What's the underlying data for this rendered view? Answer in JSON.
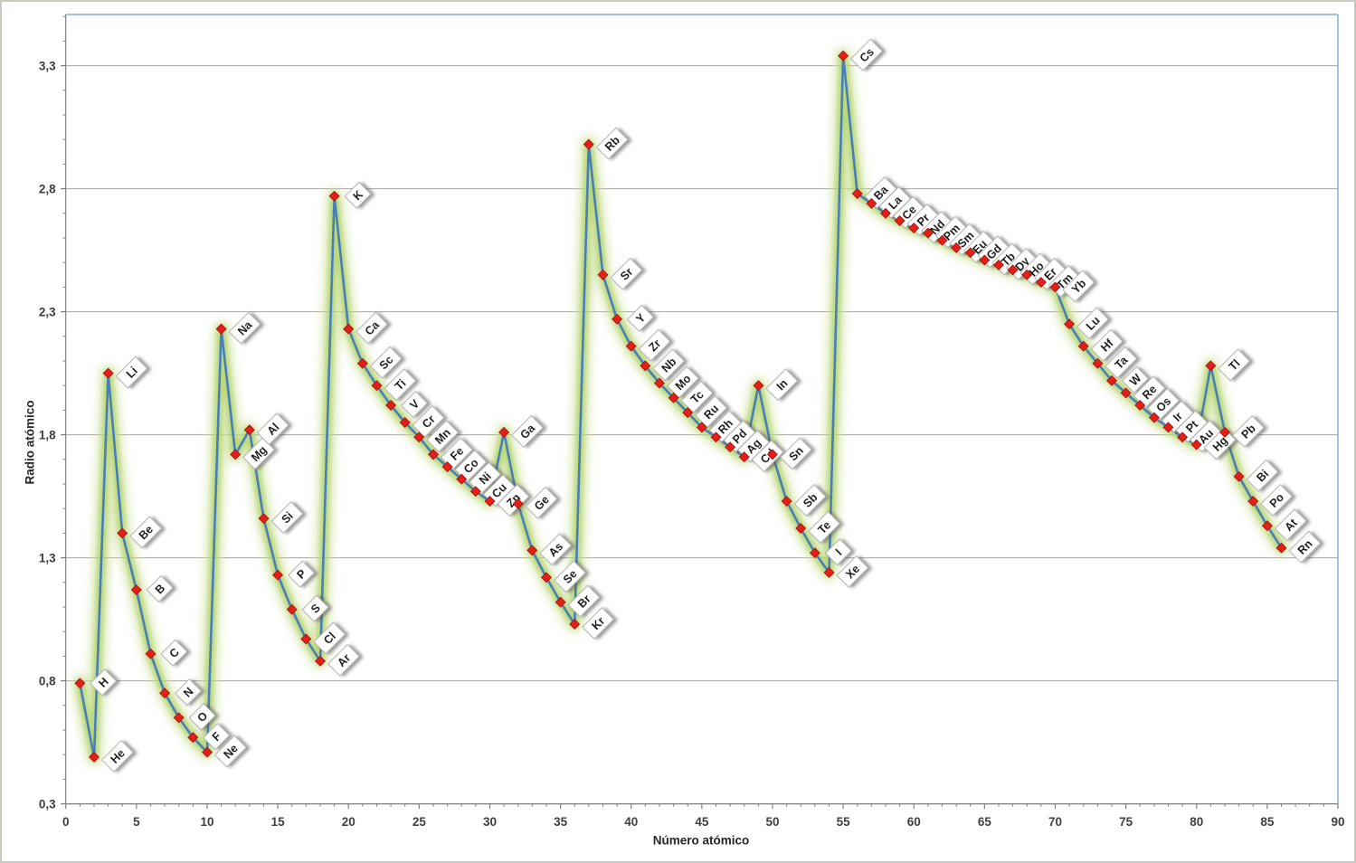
{
  "window": {
    "background": "#ffffff",
    "border_color": "#ccc9c3"
  },
  "chart_data": {
    "type": "line",
    "title": "",
    "xlabel": "Número atómico",
    "ylabel": "Radio atómico",
    "xlim": [
      0,
      90
    ],
    "ylim": [
      0.3,
      3.3
    ],
    "x_tick_step": 5,
    "x_minor_tick_step": 1,
    "y_minor_tick_step": 0.1,
    "grid": "horizontal-only",
    "legend": "none",
    "x_ticks": [
      {
        "value": 0,
        "label": "0"
      },
      {
        "value": 5,
        "label": "5"
      },
      {
        "value": 10,
        "label": "10"
      },
      {
        "value": 15,
        "label": "15"
      },
      {
        "value": 20,
        "label": "20"
      },
      {
        "value": 25,
        "label": "25"
      },
      {
        "value": 30,
        "label": "30"
      },
      {
        "value": 35,
        "label": "35"
      },
      {
        "value": 40,
        "label": "40"
      },
      {
        "value": 45,
        "label": "45"
      },
      {
        "value": 50,
        "label": "50"
      },
      {
        "value": 55,
        "label": "55"
      },
      {
        "value": 60,
        "label": "60"
      },
      {
        "value": 65,
        "label": "65"
      },
      {
        "value": 70,
        "label": "70"
      },
      {
        "value": 75,
        "label": "75"
      },
      {
        "value": 80,
        "label": "80"
      },
      {
        "value": 85,
        "label": "85"
      },
      {
        "value": 90,
        "label": "90"
      }
    ],
    "y_ticks": [
      {
        "value": 3.3,
        "label": "3,3"
      },
      {
        "value": 2.8,
        "label": "2,8"
      },
      {
        "value": 2.3,
        "label": "2,3"
      },
      {
        "value": 1.8,
        "label": "1,8"
      },
      {
        "value": 1.3,
        "label": "1,3"
      },
      {
        "value": 0.8,
        "label": "0,8"
      },
      {
        "value": 0.3,
        "label": "0,3"
      }
    ],
    "series": [
      {
        "name": "Radio atómico",
        "x": [
          1,
          2,
          3,
          4,
          5,
          6,
          7,
          8,
          9,
          10,
          11,
          12,
          13,
          14,
          15,
          16,
          17,
          18,
          19,
          20,
          21,
          22,
          23,
          24,
          25,
          26,
          27,
          28,
          29,
          30,
          31,
          32,
          33,
          34,
          35,
          36,
          37,
          38,
          39,
          40,
          41,
          42,
          43,
          44,
          45,
          46,
          47,
          48,
          49,
          50,
          51,
          52,
          53,
          54,
          55,
          56,
          57,
          58,
          59,
          60,
          61,
          62,
          63,
          64,
          65,
          66,
          67,
          68,
          69,
          70,
          71,
          72,
          73,
          74,
          75,
          76,
          77,
          78,
          79,
          80,
          81,
          82,
          83,
          84,
          85,
          86
        ],
        "point_labels": [
          "H",
          "He",
          "Li",
          "Be",
          "B",
          "C",
          "N",
          "O",
          "F",
          "Ne",
          "Na",
          "Mg",
          "Al",
          "Si",
          "P",
          "S",
          "Cl",
          "Ar",
          "K",
          "Ca",
          "Sc",
          "Ti",
          "V",
          "Cr",
          "Mn",
          "Fe",
          "Co",
          "Ni",
          "Cu",
          "Zn",
          "Ga",
          "Ge",
          "As",
          "Se",
          "Br",
          "Kr",
          "Rb",
          "Sr",
          "Y",
          "Zr",
          "Nb",
          "Mo",
          "Tc",
          "Ru",
          "Rh",
          "Pd",
          "Ag",
          "Cd",
          "In",
          "Sn",
          "Sb",
          "Te",
          "I",
          "Xe",
          "Cs",
          "Ba",
          "La",
          "Ce",
          "Pr",
          "Nd",
          "Pm",
          "Sm",
          "Eu",
          "Gd",
          "Tb",
          "Dy",
          "Ho",
          "Er",
          "Tm",
          "Yb",
          "Lu",
          "Hf",
          "Ta",
          "W",
          "Re",
          "Os",
          "Ir",
          "Pt",
          "Au",
          "Hg",
          "Tl",
          "Pb",
          "Bi",
          "Po",
          "At",
          "Rn"
        ],
        "y": [
          0.79,
          0.49,
          2.05,
          1.4,
          1.17,
          0.91,
          0.75,
          0.65,
          0.57,
          0.51,
          2.23,
          1.72,
          1.82,
          1.46,
          1.23,
          1.09,
          0.97,
          0.88,
          2.77,
          2.23,
          2.09,
          2.0,
          1.92,
          1.85,
          1.79,
          1.72,
          1.67,
          1.62,
          1.57,
          1.53,
          1.81,
          1.52,
          1.33,
          1.22,
          1.12,
          1.03,
          2.98,
          2.45,
          2.27,
          2.16,
          2.08,
          2.01,
          1.95,
          1.89,
          1.83,
          1.79,
          1.75,
          1.71,
          2.0,
          1.72,
          1.53,
          1.42,
          1.32,
          1.24,
          3.34,
          2.78,
          2.74,
          2.7,
          2.67,
          2.64,
          2.62,
          2.59,
          2.56,
          2.54,
          2.51,
          2.49,
          2.47,
          2.45,
          2.42,
          2.4,
          2.25,
          2.16,
          2.09,
          2.02,
          1.97,
          1.92,
          1.87,
          1.83,
          1.79,
          1.76,
          2.08,
          1.81,
          1.63,
          1.53,
          1.43,
          1.34
        ]
      }
    ],
    "colors": {
      "line": "#4a7ebb",
      "marker": "#e32017",
      "marker_edge": "#a50d0d",
      "glow_inner": "#acd164",
      "glow_outer": "#cadf93",
      "gridline": "#a6a6a6",
      "axis": "#7f7f7f",
      "plot_border_top_right": "#6d9ac9",
      "tick_label": "#3f3f3f",
      "data_label_text": "#111111",
      "data_label_box": "#ffffff",
      "data_label_border": "#b0b0b0"
    }
  }
}
